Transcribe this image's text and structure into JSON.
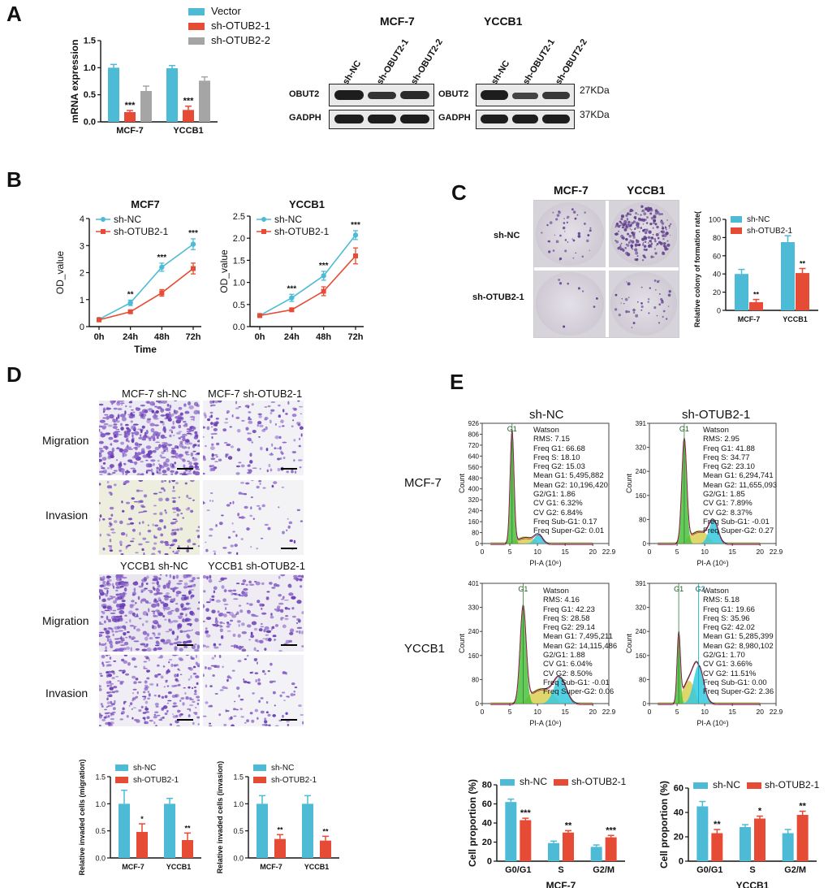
{
  "panels": {
    "a": "A",
    "b": "B",
    "c": "C",
    "d": "D",
    "e": "E"
  },
  "colors": {
    "blue": "#4dbbd5",
    "red": "#e64b35",
    "grey": "#a5a5a5"
  },
  "panelA": {
    "legend": [
      "Vector",
      "sh-OTUB2-1",
      "sh-OTUB2-2"
    ],
    "blot_cell_titles": [
      "MCF-7",
      "YCCB1"
    ],
    "lane_labels": [
      "sh-NC",
      "sh-OBUT2-1",
      "sh-OBUT2-2"
    ],
    "row_labels": [
      "OBUT2",
      "GADPH"
    ],
    "sizes": [
      "27KDa",
      "37KDa"
    ]
  },
  "panelB": {
    "titles": [
      "MCF7",
      "YCCB1"
    ],
    "legend": [
      "sh-NC",
      "sh-OTUB2-1"
    ]
  },
  "panelC": {
    "col_titles": [
      "MCF-7",
      "YCCB1"
    ],
    "row_labels": [
      "sh-NC",
      "sh-OTUB2-1"
    ],
    "legend": [
      "sh-NC",
      "sh-OTUB2-1"
    ]
  },
  "panelD": {
    "col_titles_top": [
      "MCF-7 sh-NC",
      "MCF-7  sh-OTUB2-1"
    ],
    "col_titles_bottom": [
      "YCCB1  sh-NC",
      "YCCB1  sh-OTUB2-1"
    ],
    "row_labels": [
      "Migration",
      "Invasion",
      "Migration",
      "Invasion"
    ],
    "legend": [
      "sh-NC",
      "sh-OTUB2-1"
    ]
  },
  "panelE": {
    "col_titles": [
      "sh-NC",
      "sh-OTUB2-1"
    ],
    "row_labels": [
      "MCF-7",
      "YCCB1"
    ],
    "count_label": "Count",
    "stats": [
      "Watson\nRMS: 7.15\nFreq G1: 66.68\nFreq S: 18.10\nFreq G2: 15.03\nMean G1: 5,495,882\nMean G2: 10,196,420\nG2/G1: 1.86\nCV G1: 6.32%\nCV G2: 6.84%\nFreq Sub-G1: 0.17\nFreq Super-G2: 0.01",
      "Watson\nRMS: 2.95\nFreq G1: 41.88\nFreq S: 34.77\nFreq G2: 23.10\nMean G1: 6,294,741\nMean G2: 11,655,093\nG2/G1: 1.85\nCV G1: 7.89%\nCV G2: 8.37%\nFreq Sub-G1: -0.01\nFreq Super-G2: 0.27",
      "Watson\nRMS: 4.16\nFreq G1: 42.23\nFreq S: 28.58\nFreq G2: 29.14\nMean G1: 7,495,211\nMean G2: 14,115,486\nG2/G1: 1.88\nCV G1: 6.04%\nCV G2: 8.50%\nFreq Sub-G1: -0.01\nFreq Super-G2: 0.06",
      "Watson\nRMS: 5.18\nFreq G1: 19.66\nFreq S: 35.96\nFreq G2: 42.02\nMean G1: 5,285,399\nMean G2: 8,980,102\nG2/G1: 1.70\nCV G1: 3.66%\nCV G2: 11.51%\nFreq Sub-G1: 0.00\nFreq Super-G2: 2.36"
    ],
    "gate_labels": [
      "G1",
      "G1",
      "G1",
      "G1",
      "G2"
    ],
    "legend": [
      "sh-NC",
      "sh-OTUB2-1"
    ]
  },
  "chart_data": [
    {
      "id": "A_mrna",
      "type": "bar",
      "title": "",
      "ylabel": "mRNA expression",
      "xlabel": "",
      "ylim": [
        0,
        1.5
      ],
      "yticks": [
        "0.0",
        "0.5",
        "1.0",
        "1.5"
      ],
      "categories": [
        "MCF-7",
        "YCCB1"
      ],
      "series": [
        {
          "name": "Vector",
          "values": [
            1.0,
            0.99
          ],
          "err": [
            0.06,
            0.05
          ]
        },
        {
          "name": "sh-OTUB2-1",
          "values": [
            0.18,
            0.22
          ],
          "err": [
            0.03,
            0.07
          ]
        },
        {
          "name": "sh-OTUB2-2",
          "values": [
            0.57,
            0.76
          ],
          "err": [
            0.09,
            0.07
          ]
        }
      ],
      "annotations": [
        "***",
        "***"
      ]
    },
    {
      "id": "B_mcf7",
      "type": "line",
      "title": "MCF7",
      "ylabel": "OD_value",
      "xlabel": "Time",
      "ylim": [
        0,
        4
      ],
      "yticks": [
        "0",
        "1",
        "2",
        "3",
        "4"
      ],
      "x": [
        "0h",
        "24h",
        "48h",
        "72h"
      ],
      "series": [
        {
          "name": "sh-NC",
          "values": [
            0.27,
            0.88,
            2.2,
            3.05
          ],
          "err": [
            0.05,
            0.1,
            0.15,
            0.2
          ]
        },
        {
          "name": "sh-OTUB2-1",
          "values": [
            0.25,
            0.55,
            1.25,
            2.15
          ],
          "err": [
            0.03,
            0.05,
            0.12,
            0.2
          ]
        }
      ],
      "annotations": [
        "",
        "**",
        "***",
        "***"
      ]
    },
    {
      "id": "B_yccb1",
      "type": "line",
      "title": "YCCB1",
      "ylabel": "OD_value",
      "xlabel": "",
      "ylim": [
        0,
        2.5
      ],
      "yticks": [
        "0.0",
        "0.5",
        "1.0",
        "1.5",
        "2.0",
        "2.5"
      ],
      "x": [
        "0h",
        "24h",
        "48h",
        "72h"
      ],
      "series": [
        {
          "name": "sh-NC",
          "values": [
            0.25,
            0.65,
            1.15,
            2.07
          ],
          "err": [
            0.03,
            0.08,
            0.1,
            0.1
          ]
        },
        {
          "name": "sh-OTUB2-1",
          "values": [
            0.25,
            0.38,
            0.8,
            1.6
          ],
          "err": [
            0.02,
            0.03,
            0.1,
            0.18
          ]
        }
      ],
      "annotations": [
        "",
        "***",
        "***",
        "***"
      ]
    },
    {
      "id": "C_colony",
      "type": "bar",
      "title": "",
      "ylabel": "Relative colony of formation rate(%)",
      "xlabel": "",
      "ylim": [
        0,
        100
      ],
      "yticks": [
        "0",
        "20",
        "40",
        "60",
        "80",
        "100"
      ],
      "categories": [
        "MCF-7",
        "YCCB1"
      ],
      "series": [
        {
          "name": "sh-NC",
          "values": [
            40,
            75
          ],
          "err": [
            5,
            7
          ]
        },
        {
          "name": "sh-OTUB2-1",
          "values": [
            9,
            41
          ],
          "err": [
            3,
            5
          ]
        }
      ],
      "annotations": [
        "**",
        "**"
      ]
    },
    {
      "id": "D_migration",
      "type": "bar",
      "title": "",
      "ylabel": "Relative invaded cells (migration)",
      "xlabel": "",
      "ylim": [
        0,
        1.5
      ],
      "yticks": [
        "0.0",
        "0.5",
        "1.0",
        "1.5"
      ],
      "categories": [
        "MCF-7",
        "YCCB1"
      ],
      "series": [
        {
          "name": "sh-NC",
          "values": [
            1.0,
            1.0
          ],
          "err": [
            0.25,
            0.1
          ]
        },
        {
          "name": "sh-OTUB2-1",
          "values": [
            0.48,
            0.33
          ],
          "err": [
            0.15,
            0.13
          ]
        }
      ],
      "annotations": [
        "*",
        "**"
      ]
    },
    {
      "id": "D_invasion",
      "type": "bar",
      "title": "",
      "ylabel": "Relative invaded cells (invasion)",
      "xlabel": "",
      "ylim": [
        0,
        1.5
      ],
      "yticks": [
        "0.0",
        "0.5",
        "1.0",
        "1.5"
      ],
      "categories": [
        "MCF-7",
        "YCCB1"
      ],
      "series": [
        {
          "name": "sh-NC",
          "values": [
            1.0,
            1.0
          ],
          "err": [
            0.15,
            0.15
          ]
        },
        {
          "name": "sh-OTUB2-1",
          "values": [
            0.35,
            0.32
          ],
          "err": [
            0.08,
            0.08
          ]
        }
      ],
      "annotations": [
        "**",
        "**"
      ]
    },
    {
      "id": "E_mcf7",
      "type": "bar",
      "title": "MCF-7",
      "ylabel": "Cell proportion (%)",
      "xlabel": "",
      "ylim": [
        0,
        80
      ],
      "yticks": [
        "0",
        "20",
        "40",
        "60",
        "80"
      ],
      "categories": [
        "G0/G1",
        "S",
        "G2/M"
      ],
      "series": [
        {
          "name": "sh-NC",
          "values": [
            62,
            19,
            15
          ],
          "err": [
            3,
            2,
            2
          ]
        },
        {
          "name": "sh-OTUB2-1",
          "values": [
            43,
            30,
            25
          ],
          "err": [
            2,
            2,
            2
          ]
        }
      ],
      "annotations": [
        "***",
        "**",
        "***"
      ]
    },
    {
      "id": "E_yccb1",
      "type": "bar",
      "title": "YCCB1",
      "ylabel": "Cell proportion (%)",
      "xlabel": "",
      "ylim": [
        0,
        60
      ],
      "yticks": [
        "0",
        "20",
        "40",
        "60"
      ],
      "categories": [
        "G0/G1",
        "S",
        "G2/M"
      ],
      "series": [
        {
          "name": "sh-NC",
          "values": [
            45,
            28,
            23
          ],
          "err": [
            4,
            2,
            3
          ]
        },
        {
          "name": "sh-OTUB2-1",
          "values": [
            23,
            35,
            38
          ],
          "err": [
            3,
            2,
            3
          ]
        }
      ],
      "annotations": [
        "**",
        "*",
        "**"
      ]
    },
    {
      "id": "E_hist_mcf7_nc",
      "type": "area",
      "xlabel": "PI-A (10⁶)",
      "xlim": [
        0,
        22.9
      ],
      "xticks": [
        "0",
        "5",
        "10",
        "15",
        "20",
        "22.9"
      ],
      "ylim": [
        0,
        926
      ],
      "yticks": [
        "0",
        "80",
        "160",
        "240",
        "320",
        "400",
        "480",
        "560",
        "640",
        "720",
        "806",
        "926"
      ]
    },
    {
      "id": "E_hist_mcf7_sh",
      "type": "area",
      "xlabel": "PI-A (10⁶)",
      "xlim": [
        0,
        22.9
      ],
      "xticks": [
        "0",
        "5",
        "10",
        "15",
        "20",
        "22.9"
      ],
      "ylim": [
        0,
        391
      ],
      "yticks": [
        "0",
        "80",
        "160",
        "240",
        "320",
        "391"
      ]
    },
    {
      "id": "E_hist_yccb1_nc",
      "type": "area",
      "xlabel": "PI-A (10⁶)",
      "xlim": [
        0,
        22.9
      ],
      "xticks": [
        "0",
        "5",
        "10",
        "15",
        "20",
        "22.9"
      ],
      "ylim": [
        0,
        401
      ],
      "yticks": [
        "0",
        "80",
        "160",
        "240",
        "330",
        "401"
      ]
    },
    {
      "id": "E_hist_yccb1_sh",
      "type": "area",
      "xlabel": "PI-A (10⁶)",
      "xlim": [
        0,
        22.9
      ],
      "xticks": [
        "0",
        "5",
        "10",
        "15",
        "20",
        "22.9"
      ],
      "ylim": [
        0,
        391
      ],
      "yticks": [
        "0",
        "80",
        "160",
        "240",
        "320",
        "391"
      ]
    }
  ]
}
